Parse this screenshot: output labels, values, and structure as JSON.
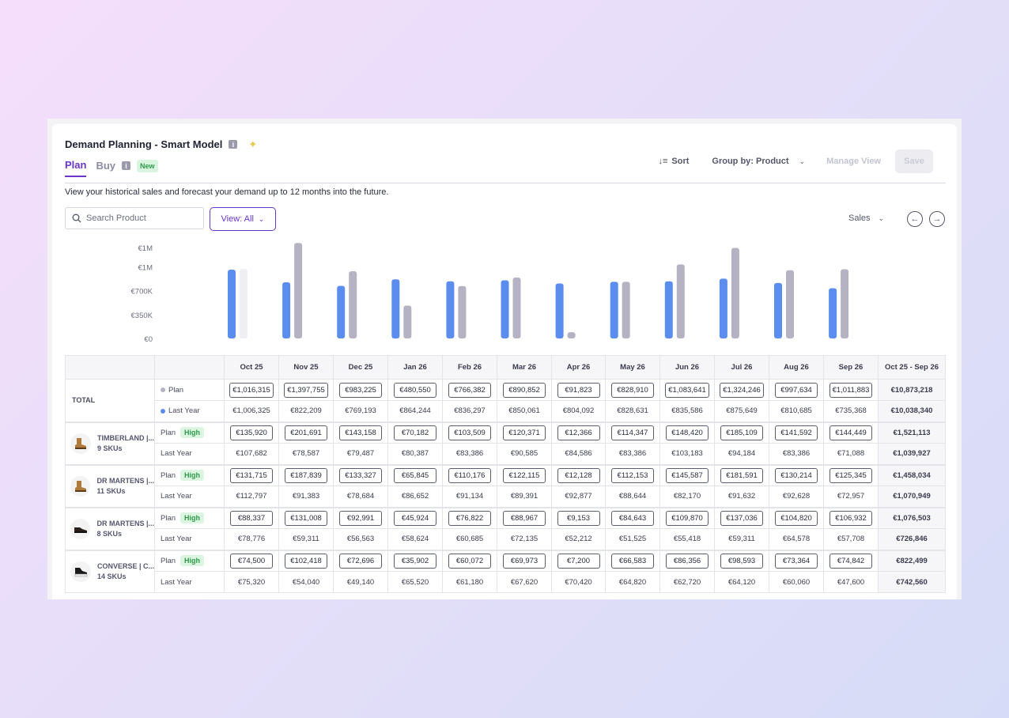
{
  "app": {
    "title": "Demand Planning - Smart Model",
    "info_icon": "i",
    "sparkle_icon": "sparkle-icon"
  },
  "tabs": {
    "plan": "Plan",
    "buy": "Buy",
    "buy_badge": "New"
  },
  "toolbar": {
    "sort_label": "Sort",
    "sort_icon": "↓≡",
    "group_label": "Group by: Product",
    "manage_label": "Manage View",
    "save_label": "Save"
  },
  "description": "View your historical sales and forecast your demand up to 12 months into the future.",
  "search": {
    "placeholder": "Search Product"
  },
  "view_filter": {
    "label": "View: All"
  },
  "metric_select": {
    "label": "Sales"
  },
  "colors": {
    "accent": "#6a35c9",
    "last_year": "#5b8def",
    "plan": "#b5b3c3",
    "high_badge": "#2f9a4c"
  },
  "chart_data": {
    "type": "bar",
    "categories": [
      "Oct 25",
      "Nov 25",
      "Dec 25",
      "Jan 26",
      "Feb 26",
      "Mar 26",
      "Apr 26",
      "May 26",
      "Jun 26",
      "Jul 26",
      "Aug 26",
      "Sep 26"
    ],
    "series": [
      {
        "name": "Last Year",
        "values": [
          1006325,
          822209,
          769193,
          864244,
          836297,
          850061,
          804092,
          828631,
          835586,
          875649,
          810685,
          735368
        ]
      },
      {
        "name": "Plan",
        "values": [
          1016315,
          1397755,
          983225,
          480550,
          766382,
          890852,
          91823,
          828910,
          1083641,
          1324246,
          997634,
          1011883
        ]
      }
    ],
    "ytick_labels": [
      "€0",
      "€350K",
      "€700K",
      "€1M",
      "€1M"
    ],
    "ytick_values": [
      0,
      350000,
      700000,
      1050000,
      1330000
    ],
    "ylim": [
      0,
      1400000
    ]
  },
  "table": {
    "columns": [
      "Oct 25",
      "Nov 25",
      "Dec 25",
      "Jan 26",
      "Feb 26",
      "Mar 26",
      "Apr 26",
      "May 26",
      "Jun 26",
      "Jul 26",
      "Aug 26",
      "Sep 26",
      "Oct 25 - Sep 26"
    ],
    "total": {
      "label": "TOTAL",
      "plan_label": "Plan",
      "last_year_label": "Last Year",
      "plan": [
        "€1,016,315",
        "€1,397,755",
        "€983,225",
        "€480,550",
        "€766,382",
        "€890,852",
        "€91,823",
        "€828,910",
        "€1,083,641",
        "€1,324,246",
        "€997,634",
        "€1,011,883"
      ],
      "plan_total": "€10,873,218",
      "last_year": [
        "€1,006,325",
        "€822,209",
        "€769,193",
        "€864,244",
        "€836,297",
        "€850,061",
        "€804,092",
        "€828,631",
        "€835,586",
        "€875,649",
        "€810,685",
        "€735,368"
      ],
      "last_year_total": "€10,038,340"
    },
    "products": [
      {
        "name": "TIMBERLAND |...",
        "skus": "9 SKUs",
        "icon": "boot-icon",
        "plan_label": "Plan",
        "badge": "High",
        "last_year_label": "Last Year",
        "plan": [
          "€135,920",
          "€201,691",
          "€143,158",
          "€70,182",
          "€103,509",
          "€120,371",
          "€12,366",
          "€114,347",
          "€148,420",
          "€185,109",
          "€141,592",
          "€144,449"
        ],
        "plan_total": "€1,521,113",
        "last_year": [
          "€107,682",
          "€78,587",
          "€79,487",
          "€80,387",
          "€83,386",
          "€90,585",
          "€84,586",
          "€83,386",
          "€103,183",
          "€94,184",
          "€83,386",
          "€71,088"
        ],
        "last_year_total": "€1,039,927"
      },
      {
        "name": "DR MARTENS |...",
        "skus": "11 SKUs",
        "icon": "boot-icon",
        "plan_label": "Plan",
        "badge": "High",
        "last_year_label": "Last Year",
        "plan": [
          "€131,715",
          "€187,839",
          "€133,327",
          "€65,845",
          "€110,176",
          "€122,115",
          "€12,128",
          "€112,153",
          "€145,587",
          "€181,591",
          "€130,214",
          "€125,345"
        ],
        "plan_total": "€1,458,034",
        "last_year": [
          "€112,797",
          "€91,383",
          "€78,684",
          "€86,652",
          "€91,134",
          "€89,391",
          "€92,877",
          "€88,644",
          "€82,170",
          "€91,632",
          "€92,628",
          "€72,957"
        ],
        "last_year_total": "€1,070,949"
      },
      {
        "name": "DR MARTENS |...",
        "skus": "8 SKUs",
        "icon": "shoe-icon",
        "plan_label": "Plan",
        "badge": "High",
        "last_year_label": "Last Year",
        "plan": [
          "€88,337",
          "€131,008",
          "€92,991",
          "€45,924",
          "€76,822",
          "€88,967",
          "€9,153",
          "€84,643",
          "€109,870",
          "€137,036",
          "€104,820",
          "€106,932"
        ],
        "plan_total": "€1,076,503",
        "last_year": [
          "€78,776",
          "€59,311",
          "€56,563",
          "€58,624",
          "€60,685",
          "€72,135",
          "€52,212",
          "€51,525",
          "€55,418",
          "€59,311",
          "€64,578",
          "€57,708"
        ],
        "last_year_total": "€726,846"
      },
      {
        "name": "CONVERSE | C...",
        "skus": "14 SKUs",
        "icon": "sneaker-icon",
        "plan_label": "Plan",
        "badge": "High",
        "last_year_label": "Last Year",
        "plan": [
          "€74,500",
          "€102,418",
          "€72,696",
          "€35,902",
          "€60,072",
          "€69,973",
          "€7,200",
          "€66,583",
          "€86,356",
          "€98,593",
          "€73,364",
          "€74,842"
        ],
        "plan_total": "€822,499",
        "last_year": [
          "€75,320",
          "€54,040",
          "€49,140",
          "€65,520",
          "€61,180",
          "€67,620",
          "€70,420",
          "€64,820",
          "€62,720",
          "€64,120",
          "€60,060",
          "€47,600"
        ],
        "last_year_total": "€742,560"
      }
    ]
  }
}
